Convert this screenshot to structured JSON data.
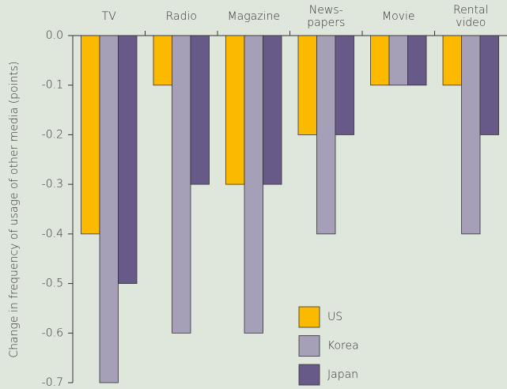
{
  "chart_data": {
    "type": "bar",
    "y_label": "Change in frequency of usage of other media (points)",
    "categories": [
      "TV",
      "Radio",
      "Magazine",
      "News-\npapers",
      "Movie",
      "Rental\nvideo"
    ],
    "series": [
      {
        "name": "US",
        "color": "#fbb900",
        "values": [
          -0.4,
          -0.1,
          -0.3,
          -0.2,
          -0.1,
          -0.1
        ]
      },
      {
        "name": "Korea",
        "color": "#a59fb8",
        "values": [
          -0.7,
          -0.6,
          -0.6,
          -0.4,
          -0.1,
          -0.4
        ]
      },
      {
        "name": "Japan",
        "color": "#675a88",
        "values": [
          -0.5,
          -0.3,
          -0.3,
          -0.2,
          -0.1,
          -0.2
        ]
      }
    ],
    "ylim": [
      -0.7,
      0
    ],
    "yticks": [
      {
        "value": 0,
        "label": "0.0"
      },
      -0.1,
      -0.2,
      -0.3,
      -0.4,
      -0.5,
      -0.6,
      -0.7
    ],
    "legend": "lower right"
  }
}
